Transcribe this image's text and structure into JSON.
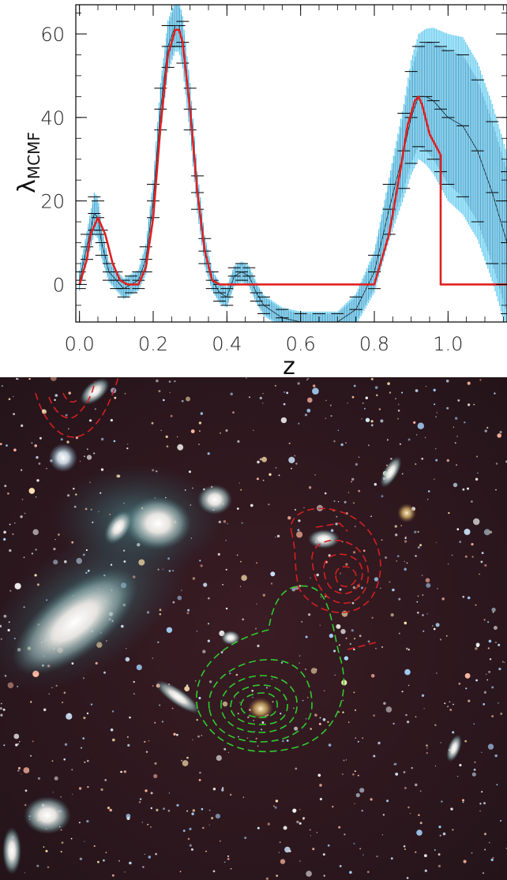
{
  "chart_data": {
    "type": "line",
    "title": "",
    "xlabel": "z",
    "ylabel": "λ",
    "ylabel_sub": "MCMF",
    "xlim": [
      -0.01,
      1.16
    ],
    "ylim": [
      -9,
      67
    ],
    "x_ticks": [
      0.0,
      0.2,
      0.4,
      0.6,
      0.8,
      1.0
    ],
    "x_tick_labels": [
      "0.0",
      "0.2",
      "0.4",
      "0.6",
      "0.8",
      "1.0"
    ],
    "y_ticks": [
      0,
      20,
      40,
      60
    ],
    "y_tick_labels": [
      "0",
      "20",
      "40",
      "60"
    ],
    "grid": false,
    "legend": "none",
    "series": [
      {
        "kind": "measurement-with-errorbars",
        "color": "#2f98c8",
        "x": [
          0.0,
          0.02,
          0.04,
          0.05,
          0.06,
          0.08,
          0.1,
          0.12,
          0.14,
          0.16,
          0.18,
          0.2,
          0.22,
          0.24,
          0.26,
          0.27,
          0.28,
          0.3,
          0.32,
          0.34,
          0.36,
          0.38,
          0.4,
          0.42,
          0.44,
          0.46,
          0.48,
          0.5,
          0.55,
          0.6,
          0.65,
          0.7,
          0.75,
          0.8,
          0.84,
          0.88,
          0.9,
          0.92,
          0.94,
          0.96,
          0.98,
          1.0,
          1.04,
          1.08,
          1.12,
          1.16
        ],
        "y": [
          1,
          9,
          17,
          16,
          10,
          3,
          1,
          -1,
          0,
          1,
          6,
          20,
          42,
          57,
          62,
          62,
          58,
          42,
          22,
          8,
          1,
          -2,
          -3,
          2,
          3,
          2,
          -2,
          -5,
          -8,
          -9,
          -9,
          -9,
          -6,
          3,
          18,
          32,
          40,
          45,
          45,
          44,
          42,
          40,
          38,
          32,
          22,
          10
        ],
        "err": [
          2,
          3,
          4,
          4,
          3,
          2,
          2,
          2,
          2,
          2,
          3,
          4,
          5,
          5,
          5,
          5,
          5,
          5,
          4,
          3,
          2,
          2,
          2,
          2,
          2,
          2,
          2,
          2,
          2,
          2,
          2,
          2,
          3,
          4,
          6,
          9,
          11,
          12,
          13,
          14,
          15,
          16,
          17,
          17,
          17,
          17
        ]
      },
      {
        "kind": "model",
        "color": "#e02020",
        "x": [
          0.0,
          0.02,
          0.03,
          0.05,
          0.07,
          0.09,
          0.11,
          0.13,
          0.16,
          0.18,
          0.2,
          0.22,
          0.24,
          0.26,
          0.27,
          0.28,
          0.3,
          0.32,
          0.34,
          0.36,
          0.38,
          0.8,
          0.84,
          0.87,
          0.89,
          0.91,
          0.92,
          0.93,
          0.95,
          0.98,
          0.98,
          1.16
        ],
        "y": [
          0,
          6,
          12,
          16,
          12,
          5,
          1,
          0,
          0,
          4,
          16,
          38,
          55,
          61,
          61,
          58,
          42,
          22,
          8,
          1,
          0,
          0,
          12,
          27,
          38,
          44,
          45,
          43,
          36,
          31,
          0,
          0
        ]
      }
    ]
  },
  "image": {
    "description_icon": "galaxy-cluster-sky-image",
    "contours": [
      {
        "name": "red-contours",
        "color": "#d42020"
      },
      {
        "name": "green-contours",
        "color": "#2ecc2e"
      }
    ]
  }
}
